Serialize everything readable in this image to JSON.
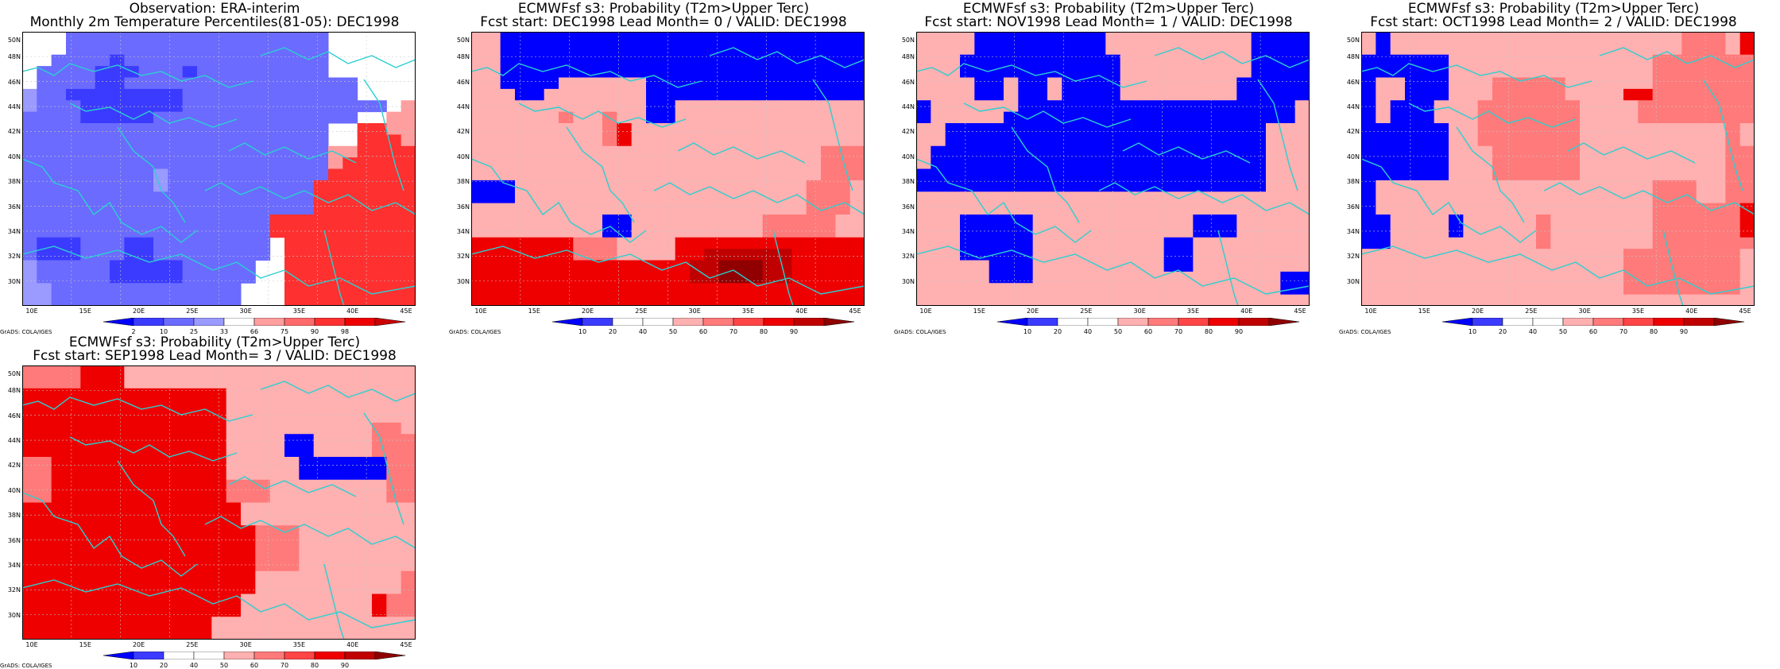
{
  "lat_labels": [
    "50N",
    "48N",
    "46N",
    "44N",
    "42N",
    "40N",
    "38N",
    "36N",
    "34N",
    "32N",
    "30N"
  ],
  "lon_labels": [
    "10E",
    "15E",
    "20E",
    "25E",
    "30E",
    "35E",
    "40E",
    "45E"
  ],
  "credit": "GrADS: COLA/IGES",
  "coast_color": "#2ad0d0",
  "panels": [
    {
      "title1": "Observation: ERA-interim",
      "title2": "Monthly 2m Temperature Percentiles(81-05): DEC1998",
      "ticks": [
        "2",
        "10",
        "25",
        "33",
        "66",
        "75",
        "90",
        "98"
      ],
      "colors": [
        "#0000ff",
        "#3b3bff",
        "#6b6bff",
        "#9a9aff",
        "#ffffff",
        "#ff9e9e",
        "#ff6a6a",
        "#ff3030",
        "#ee0000",
        "#cc0000"
      ],
      "rows": [
        "wwwvvvvvvvvvvvvvvvvvvwwwwww",
        "wwwvvvvvvvvvvvvvvvvvvwwwwww",
        "wwvvvvtvvvvvvvvvvvvvvwwwwww",
        "wvvvvtttvvvtvvvvvvvvvwwwwww",
        "wvvvvttvvvvvvvvvvvvvvvvwwww",
        "uvvsssssstsvvvvvvvvvvvvwwww",
        "uvvvsstssssvvvvvvvvvvvvvvwp",
        "vvvvsssssvvvvvvvvvvvvvvwwpp",
        "vvvvvvvvvvvvvvvvvvvvvwwrrpp",
        "vvvvvvvvvvvvvvvvvvvvvwwrrrp",
        "vvvvvvvvvvvvvvvvvvvvvpprrrr",
        "vvvvvvvvvvvvvvvvvvvvvprrrrr",
        "vvvvvvvvvuvvvvvvvvvvvrrrrrr",
        "vvvvvvvvvuvvvvvvvvvvrrrrrrr",
        "vvvvvvvvvvvvvvvvvvvvrrrrrrr",
        "vvvvvvvvvvvvvvvvvvvvrrrrrrr",
        "vvvvvvvvvvvvvvvvvrrrrrrrrrr",
        "vvvvvvvvvvvvvvvvvrrrrrrrrrr",
        "vtttvvvttvvvvvvvvwrrrrrrrrr",
        "vtttvvvttvvvvvvvvwrrrrrrrrr",
        "uvvvvvtttttvvvvvwwrrrrrrrrr",
        "uvvvvvtttttvvvvvwwrrrrrrrrr",
        "uuvvvvvvvvvvvvvwwwrrrrrrrrr",
        "uuvvvvvvvvvvvvvwwwrrrrrrrrr"
      ]
    },
    {
      "title1": "ECMWFsf s3: Probability (T2m>Upper Terc)",
      "title2": "Fcst start: DEC1998  Lead Month= 0 / VALID: DEC1998",
      "ticks": [
        "10",
        "20",
        "40",
        "50",
        "60",
        "70",
        "80",
        "90"
      ],
      "colors": [
        "#0000ff",
        "#3b3bff",
        "#ffffff",
        "#ffffff",
        "#ffb0b0",
        "#ff7a7a",
        "#ff4545",
        "#ee0000",
        "#c00000",
        "#900000"
      ],
      "rows": [
        "wwbbbbbbbbbbbbbbbbbbbbbbbbb",
        "wwbbbbbbbbbbbbbbbbbbbbbbbbb",
        "wwbbbbbbbbbbbbbbbbbbbbbbbbb",
        "wwbbbbbbbbbbbbbbbbbbbbbbbbb",
        "wwbbbbwwwwwwbbbbbbbbbbbbbbb",
        "wwwbbwwwwwwwbbbbbbbbbbbbbbb",
        "wwwwwwwwwwwwbbwwwwwwwwwwwww",
        "wwwwwwpwwpwwbbwwwwwwwwwwwww",
        "wwwwwwwwwprwwwwwwwwwwwwwwww",
        "wwwwwwwwwprwwwwwwwwwwwwwwww",
        "wwwwwwwwwwwwwwwwwwwwwwwwppp",
        "wwwwwwwwwwwwwwwwwwwwwwwwppp",
        "wwwwwwwwwwwwwwwwwwwwwwwwppp",
        "bbbwwwwwwwwwwwwwwwwwwwwpppw",
        "bbbwwwwwwwwwwwwwwwwwwwwpppw",
        "wwwwwwwwwwwwwwwwwwwwwwwpppw",
        "wwwwwwwwwbbwwwwwwwwwpppppww",
        "wwwwwwwwwbbwwwwwwwwwpppppww",
        "rrrrrrrpppwwwwrrrrrrrrrrrrr",
        "rrrrrrrpppwwwwrrRRRRRRrrrrr",
        "rrrrrrrrrrrrrrrRRXXXRRrrrrr",
        "rrrrrrrrrrrrrrrRRXXXRRrrrrr",
        "rrrrrrrrrrrrrrrrrrrrrrrrrrr",
        "rrrrrrrrrrrrrrrrrrrrrrrrrrr"
      ]
    },
    {
      "title1": "ECMWFsf s3: Probability (T2m>Upper Terc)",
      "title2": "Fcst start: NOV1998  Lead Month= 1 / VALID: DEC1998",
      "ticks": [
        "10",
        "20",
        "40",
        "50",
        "60",
        "70",
        "80",
        "90"
      ],
      "colors": [
        "#0000ff",
        "#3b3bff",
        "#ffffff",
        "#ffffff",
        "#ffb0b0",
        "#ff7a7a",
        "#ff4545",
        "#ee0000",
        "#c00000",
        "#900000"
      ],
      "rows": [
        "wwwwbbbbbbbbbwwwwwwwwwwbbbb",
        "wwwwbbbbbbbbbwwwwwwwwwwbbbb",
        "wwwbbbbbbbbbbbwwwwwwwwwbbbb",
        "wwwbbbbbbbbbbbwwwwwwwwwbbbb",
        "wwwwbbwbbwbbbbwwwwwwwwbbbbb",
        "wwwwbbwbbwbbbbwwwwwwwwbbbbb",
        "bwwwwwwbbbbbbbbbbbbbbbbbbbw",
        "bwwwwwbbbbbbbbbbbbbbbbbbbbw",
        "wwbbbbbbbbbbbbbbbbbbbbbbwww",
        "wwbbbbbbbbbbbbbbbbbbbbbbwww",
        "wbbbbbbbbbbbbbbbbbbbbbbbwww",
        "wbbbbbbbbbbbbbbbbbbbbbbbwww",
        "bbbbbbbbbbbbbbbbbbbbbbbbwww",
        "bbbbbbbbbbbbbbbbbbbbbbbbwww",
        "wwwwwwwwwwwwwwwwwwwwwwwwwww",
        "wwwwwwwwwwwwwwwwwwwwwwwwwww",
        "wwwbbbbbwwwwwwwwwwwbbbwwwww",
        "wwwbbbbbwwwwwwwwwwwbbbwwwww",
        "wwwbbbbbwwwwwwwwwbbwwwwwwww",
        "wwwbbbbbwwwwwwwwwbbwwwwwwww",
        "wwwwwbbbwwwwwwwwwbbwwwwwwww",
        "wwwwwbbbwwwwwwwwwwwwwwwwwbb",
        "wwwwwwwwwwwwwwwwwwwwwwwwwbb",
        "wwwwwwwwwwwwwwwwwwwwwwwwwww"
      ]
    },
    {
      "title1": "ECMWFsf s3: Probability (T2m>Upper Terc)",
      "title2": "Fcst start: OCT1998  Lead Month= 2 / VALID: DEC1998",
      "ticks": [
        "10",
        "20",
        "40",
        "50",
        "60",
        "70",
        "80",
        "90"
      ],
      "colors": [
        "#0000ff",
        "#3b3bff",
        "#ffffff",
        "#ffffff",
        "#ffb0b0",
        "#ff7a7a",
        "#ff4545",
        "#ee0000",
        "#c00000",
        "#900000"
      ],
      "rows": [
        "wbwwwwwwwwwwwwwwwwwwwwpppwr",
        "wbwwwwwwwwwwwwwwwwwwwwpppwr",
        "bbbbbbwwwwwwwwwwwwwwppppppp",
        "bbbbbbwwwwwwwwwwwwwwppppppp",
        "bwwbbbwwwpppppwwwwwwppppppp",
        "bwwbbbwwwpppppwwwwrrppppppp",
        "bwbbbwwwpppppppwwwwpppppppp",
        "bwbbbwwwpppppppwwwwpppppppp",
        "bbbbbbwwpppppppwwwwwwwwwwpw",
        "bbbbbbwwpppppppwwwwwwwwwwpw",
        "bbbbbbwwwppppppwwwwwwwwwwpp",
        "bbbbbbwwwppppppwwwwwwwwwwpp",
        "bbbbbbwwwppppppwwwwwwwwwwpp",
        "bwwwwwwwwwwwwwwwwwwwpppwwpp",
        "bwwwwwwwwwwwwwwwwwwwpppwwpp",
        "bwwwwwwwwwwwwwwwwwwwppppppr",
        "bbwwwwbwwwwwpwwwwwwwppppppr",
        "bbwwwwbwwwwwpwwwwwwwppppppr",
        "bbwwwwwwwwwwpwwwwwwwpppppppp",
        "wwwwwwwwwwwwwwwwwwpppppppp",
        "wwwwwwwwwwwwwwwwwwpppppppp",
        "wwwwwwwwwwwwwwwwwwpppppppp",
        "wwwwwwwwwwwwwwwwwwpppppppp",
        "wwwwwwwwwwwwwwwwwwwwwwwwwww"
      ]
    },
    {
      "title1": "ECMWFsf s3: Probability (T2m>Upper Terc)",
      "title2": "Fcst start: SEP1998  Lead Month= 3 / VALID: DEC1998",
      "ticks": [
        "10",
        "20",
        "40",
        "50",
        "60",
        "70",
        "80",
        "90"
      ],
      "colors": [
        "#0000ff",
        "#3b3bff",
        "#ffffff",
        "#ffffff",
        "#ffb0b0",
        "#ff7a7a",
        "#ff4545",
        "#ee0000",
        "#c00000",
        "#900000"
      ],
      "rows": [
        "pppprrrwwwwwwwwwwwwwwwwwwww",
        "pppprrrwwwwwwwwwwwwwwwwwwww",
        "rrrrrrrrrrrrrrwwwwwwwwwwwww",
        "rrrrrrrrrrrrrrwwwwwwwwwwwww",
        "rrrrrrrrrrrrrrwwwwwwwwwwwww",
        "rrrrrrrrrrrrrrwwwwwwwwwwppw",
        "rrrrrrrrrrrrrrwwwwbbwwwwppp",
        "rrrrrrrrrrrrrrwwwwbbwwwwppp",
        "pprrrrrrrrrrrrwwwwwbbbbbbppp",
        "pprrrrrrrrrrrrwwwwwbbbbbbppp",
        "pprrrrrrrrrrrrpppwwwwwwwwppp",
        "pprrrrrrrrrrrrpppwwwwwwwwppp",
        "rrrrrrrrrrrrrrrwwwwwwwwwwww",
        "rrrrrrrrrrrrrrrwwwwwwwwwwww",
        "rrrrrrrrrrrrrrrrpppwwwwwwwww",
        "rrrrrrrrrrrrrrrrpppwwwwwwwww",
        "rrrrrrrrrrrrrrrrpppwwwwwwwwp",
        "rrrrrrrrrrrrrrrrpppwwwwwwwwp",
        "rrrrrrrrrrrrrrrrwwwwwwwwwwpp",
        "rrrrrrrrrrrrrrrrwwwwwwwwwwpp",
        "rrrrrrrrrrrrrrrwwwwwwwwwrppw",
        "rrrrrrrrrrrrrrrwwwwwwwwwrppw",
        "rrrrrrrrrrrrrwwwwwwwwwwwwwww",
        "rrrrrrrrrrrrrwwwwwwwwwwwwwww"
      ]
    }
  ]
}
